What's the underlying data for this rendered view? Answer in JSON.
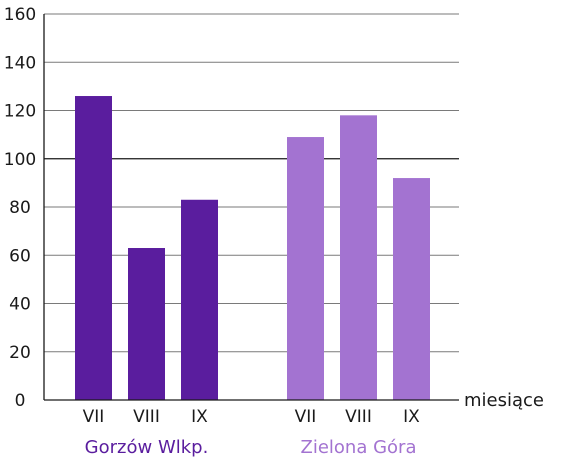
{
  "chart_data": {
    "type": "bar",
    "categories": [
      "VII",
      "VIII",
      "IX"
    ],
    "series": [
      {
        "name": "Gorzów Wlkp.",
        "values": [
          126,
          63,
          83
        ],
        "color": "#5a1d9e"
      },
      {
        "name": "Zielona Góra",
        "values": [
          109,
          118,
          92
        ],
        "color": "#a373d1"
      }
    ],
    "xlabel": "miesiące",
    "ylabel": "",
    "ylim": [
      0,
      160
    ],
    "yticks": [
      0,
      20,
      40,
      60,
      80,
      100,
      120,
      140,
      160
    ],
    "grid": true,
    "highlighted_gridline": 100
  }
}
